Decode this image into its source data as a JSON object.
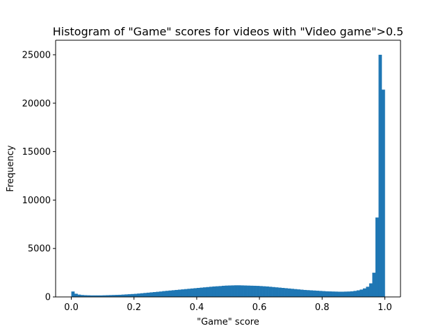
{
  "chart_data": {
    "type": "bar",
    "title": "Histogram of \"Game\" scores for videos with \"Video game\">0.5",
    "xlabel": "\"Game\" score",
    "ylabel": "Frequency",
    "xlim": [
      -0.05,
      1.05
    ],
    "ylim": [
      0,
      26500
    ],
    "xticks": [
      0.0,
      0.2,
      0.4,
      0.6,
      0.8,
      1.0
    ],
    "xtick_labels": [
      "0.0",
      "0.2",
      "0.4",
      "0.6",
      "0.8",
      "1.0"
    ],
    "yticks": [
      0,
      5000,
      10000,
      15000,
      20000,
      25000
    ],
    "ytick_labels": [
      "0",
      "5000",
      "10000",
      "15000",
      "20000",
      "25000"
    ],
    "grid": false,
    "bar_color": "#1f77b4",
    "bin_start": 0.0,
    "bin_width": 0.01,
    "values": [
      560,
      330,
      240,
      200,
      180,
      170,
      160,
      160,
      160,
      160,
      170,
      180,
      190,
      200,
      210,
      220,
      240,
      260,
      280,
      300,
      320,
      350,
      380,
      410,
      440,
      470,
      500,
      530,
      560,
      600,
      630,
      660,
      690,
      720,
      750,
      780,
      810,
      840,
      870,
      900,
      930,
      960,
      990,
      1020,
      1050,
      1080,
      1100,
      1120,
      1150,
      1170,
      1180,
      1190,
      1200,
      1200,
      1190,
      1180,
      1170,
      1160,
      1150,
      1140,
      1120,
      1100,
      1080,
      1050,
      1020,
      990,
      960,
      930,
      900,
      870,
      840,
      810,
      780,
      750,
      720,
      700,
      680,
      660,
      640,
      620,
      600,
      580,
      570,
      560,
      550,
      540,
      540,
      550,
      560,
      580,
      620,
      680,
      760,
      880,
      1050,
      1400,
      2500,
      8200,
      25000,
      21400
    ]
  }
}
